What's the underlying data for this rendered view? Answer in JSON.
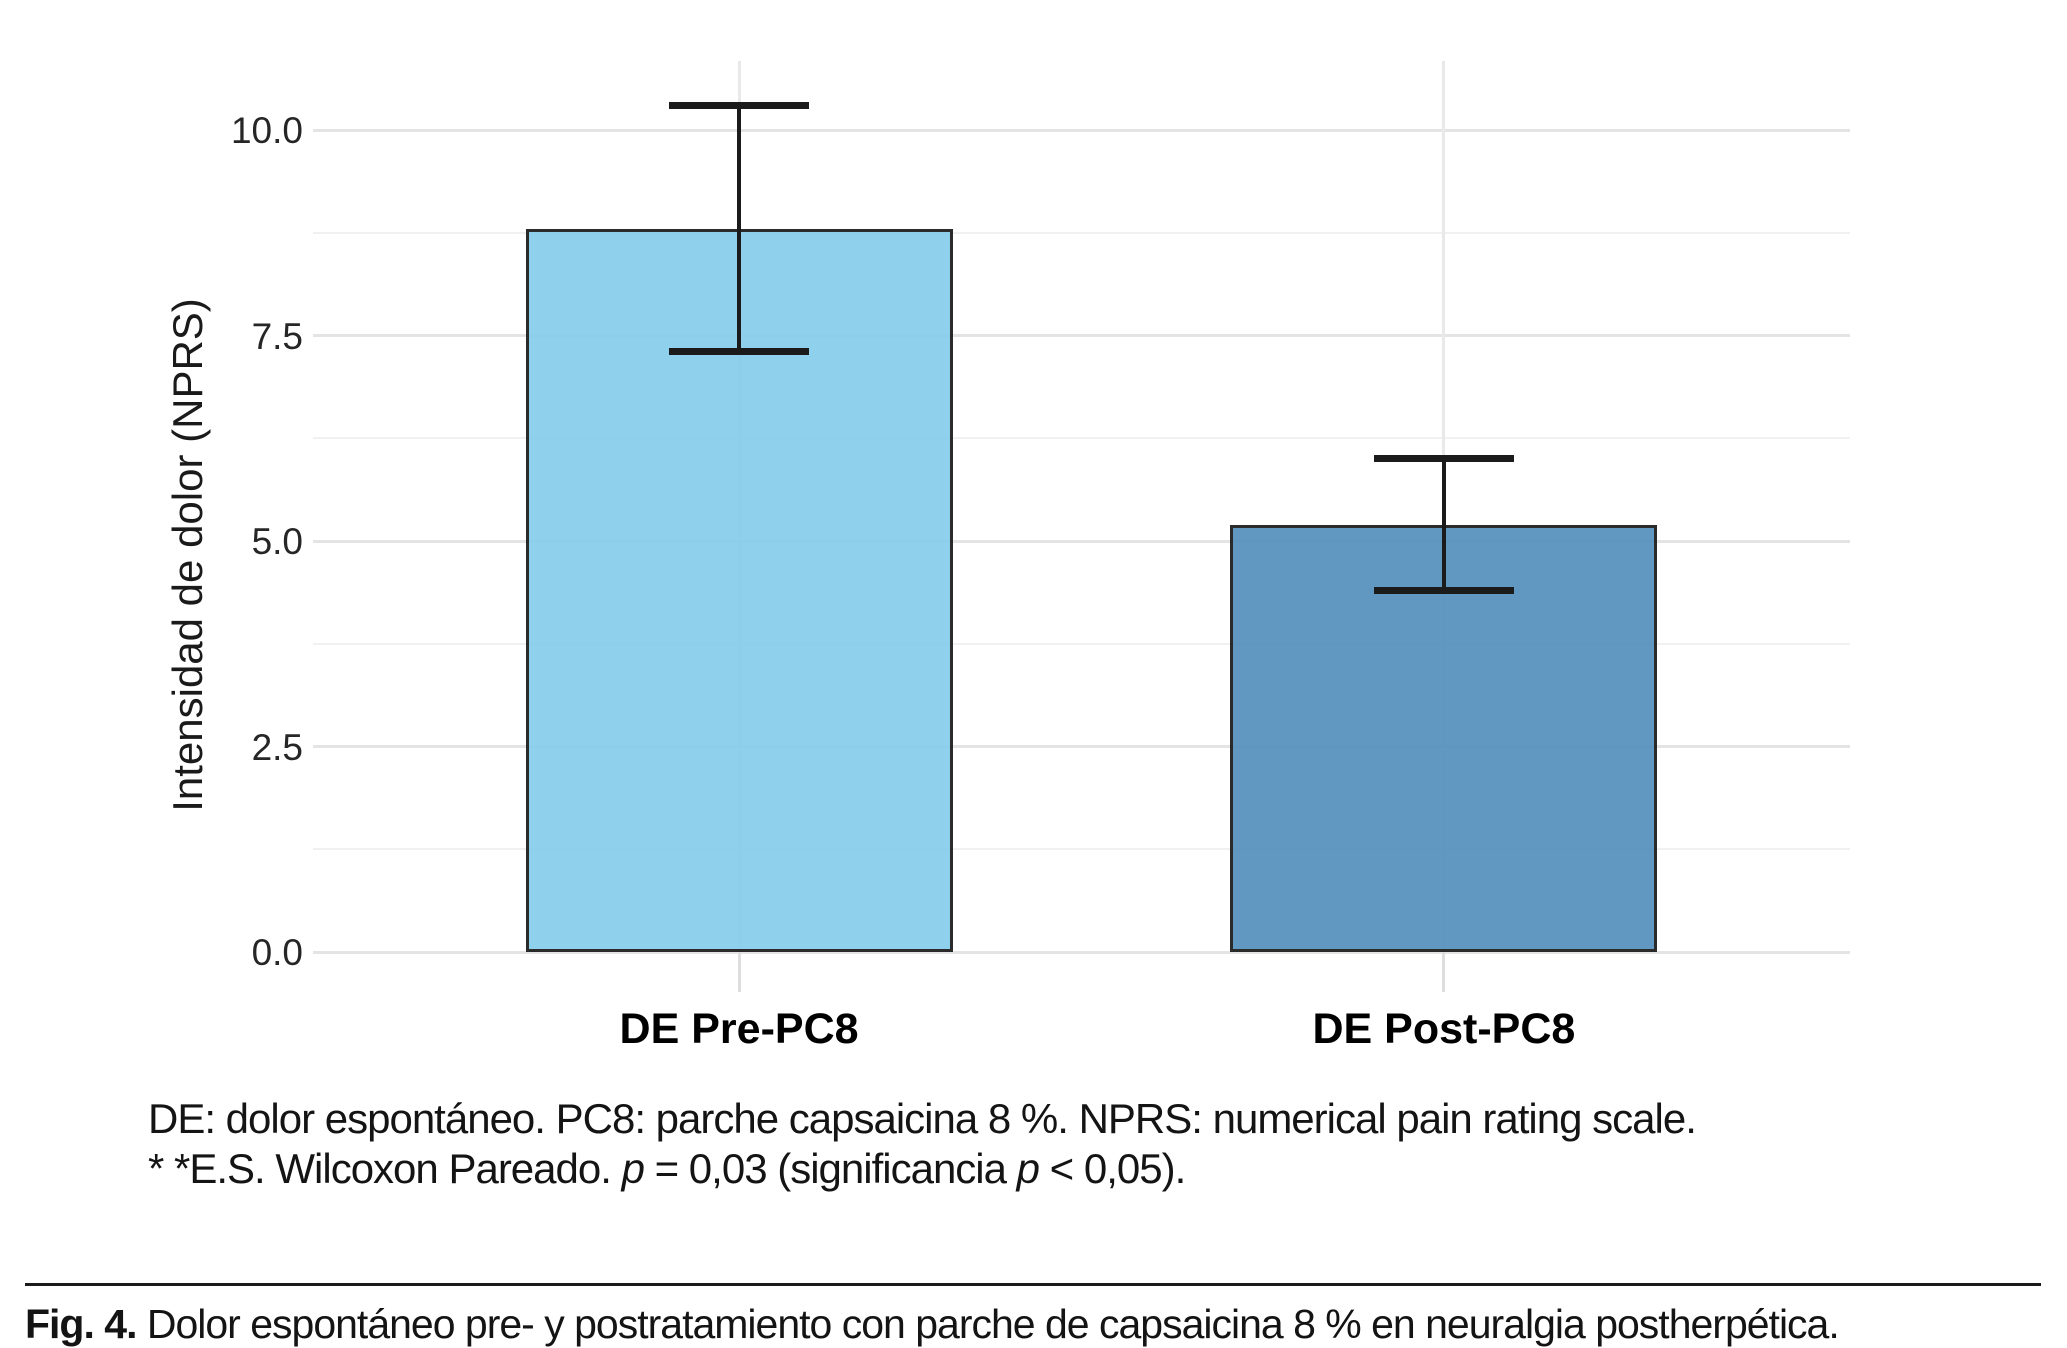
{
  "chart_data": {
    "type": "bar",
    "title": "",
    "categories": [
      "DE Pre-PC8",
      "DE Post-PC8"
    ],
    "values": [
      8.8,
      5.2
    ],
    "error_low": [
      7.3,
      4.4
    ],
    "error_high": [
      10.3,
      6.0
    ],
    "xlabel": "",
    "ylabel": "Intensidad de dolor (NPRS)",
    "ylim": [
      0,
      10
    ],
    "yticks": [
      0,
      2.5,
      5,
      7.5,
      10
    ],
    "ytick_labels": [
      "0.0",
      "2.5",
      "5.0",
      "7.5",
      "10.0"
    ],
    "minor_gridlines": [
      1.25,
      3.75,
      6.25,
      8.75
    ],
    "grid": "on",
    "legend": "none",
    "bar_colors": [
      "#87CEEB",
      "#5591BD"
    ],
    "bar_border_color": "#1b1b1b",
    "errorbar_color": "#1b1b1b"
  },
  "footnote": {
    "line1": "DE: dolor espontáneo. PC8: parche capsaicina 8 %. NPRS: numerical pain rating scale.",
    "line2_seg1": "* *E.S. Wilcoxon Pareado. ",
    "line2_p1": "p",
    "line2_seg2": " = 0,03 (significancia ",
    "line2_p2": "p",
    "line2_seg3": " < 0,05)."
  },
  "caption": {
    "label": "Fig. 4.",
    "text": " Dolor espontáneo pre- y postratamiento con parche de capsaicina 8 % en neuralgia postherpética."
  }
}
